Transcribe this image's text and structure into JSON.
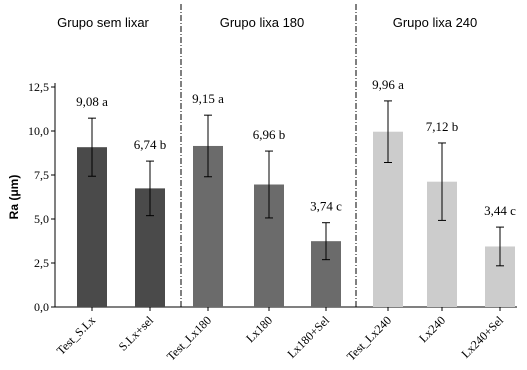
{
  "chart_data": {
    "type": "bar",
    "ylabel": "Ra (μm)",
    "xlabel": "",
    "ylim": [
      0,
      12.5
    ],
    "yticks": [
      0,
      2.5,
      5,
      7.5,
      10,
      12.5
    ],
    "ytick_labels": [
      "0,0",
      "2,5",
      "5,0",
      "7,5",
      "10,0",
      "12,5"
    ],
    "grid": false,
    "groups": [
      {
        "title": "Grupo sem lixar",
        "bars": [
          {
            "category": "Test_S.Lx",
            "value": 9.08,
            "error": 1.65,
            "label": "9,08 a",
            "color": "#4a4a4a"
          },
          {
            "category": "S.Lx+sel",
            "value": 6.74,
            "error": 1.55,
            "label": "6,74 b",
            "color": "#4a4a4a"
          }
        ]
      },
      {
        "title": "Grupo lixa 180",
        "bars": [
          {
            "category": "Test_Lx180",
            "value": 9.15,
            "error": 1.75,
            "label": "9,15 a",
            "color": "#6b6b6b"
          },
          {
            "category": "Lx180",
            "value": 6.96,
            "error": 1.9,
            "label": "6,96 b",
            "color": "#6b6b6b"
          },
          {
            "category": "Lx180+Sel",
            "value": 3.74,
            "error": 1.05,
            "label": "3,74 c",
            "color": "#6b6b6b"
          }
        ]
      },
      {
        "title": "Grupo lixa 240",
        "bars": [
          {
            "category": "Test_Lx240",
            "value": 9.96,
            "error": 1.75,
            "label": "9,96 a",
            "color": "#cccccc"
          },
          {
            "category": "Lx240",
            "value": 7.12,
            "error": 2.2,
            "label": "7,12 b",
            "color": "#cccccc"
          },
          {
            "category": "Lx240+Sel",
            "value": 3.44,
            "error": 1.1,
            "label": "3,44 c",
            "color": "#cccccc"
          }
        ]
      }
    ]
  }
}
